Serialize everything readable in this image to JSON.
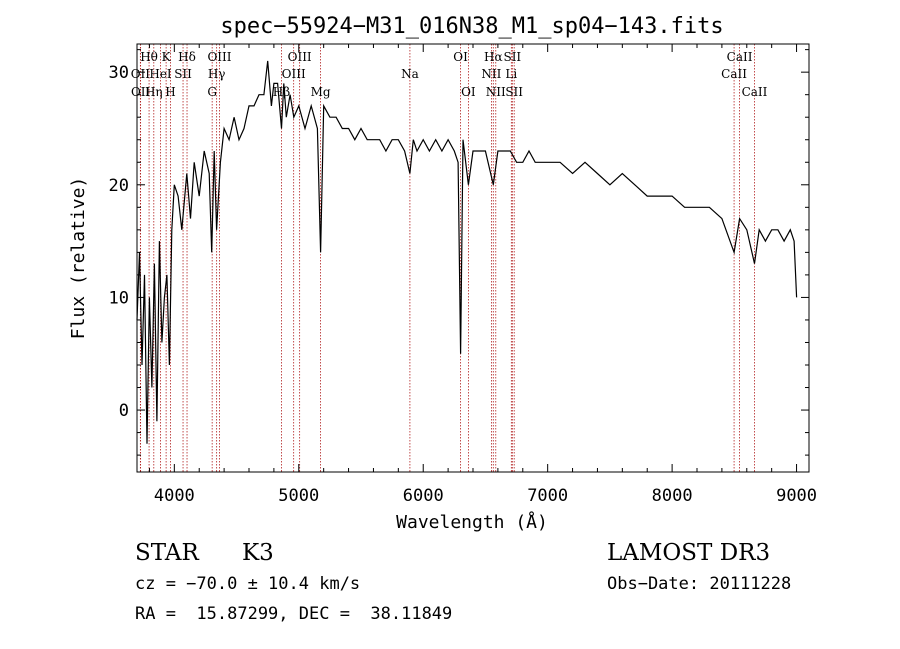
{
  "chart_data": {
    "type": "line",
    "title": "spec−55924−M31_016N38_M1_sp04−143.fits",
    "xlabel": "Wavelength (Å)",
    "ylabel": "Flux (relative)",
    "xlim": [
      3700,
      9100
    ],
    "ylim": [
      -5.5,
      32.5
    ],
    "xticks": [
      4000,
      5000,
      6000,
      7000,
      8000,
      9000
    ],
    "yticks": [
      0,
      10,
      20,
      30
    ],
    "grid": false,
    "series": [
      {
        "values_x": [
          3700,
          3720,
          3740,
          3760,
          3780,
          3800,
          3820,
          3840,
          3860,
          3880,
          3900,
          3920,
          3940,
          3960,
          3980,
          4000,
          4030,
          4060,
          4100,
          4130,
          4160,
          4200,
          4240,
          4280,
          4300,
          4320,
          4340,
          4370,
          4400,
          4440,
          4480,
          4520,
          4560,
          4600,
          4640,
          4680,
          4720,
          4750,
          4780,
          4800,
          4830,
          4861,
          4880,
          4900,
          4930,
          4960,
          5000,
          5050,
          5100,
          5150,
          5175,
          5200,
          5250,
          5300,
          5350,
          5400,
          5450,
          5500,
          5550,
          5600,
          5650,
          5700,
          5750,
          5800,
          5850,
          5893,
          5920,
          5950,
          6000,
          6050,
          6100,
          6150,
          6200,
          6250,
          6280,
          6300,
          6320,
          6363,
          6400,
          6450,
          6500,
          6563,
          6600,
          6650,
          6700,
          6750,
          6800,
          6850,
          6900,
          6950,
          7000,
          7100,
          7200,
          7300,
          7400,
          7500,
          7600,
          7700,
          7800,
          7900,
          8000,
          8100,
          8200,
          8300,
          8400,
          8498,
          8542,
          8600,
          8662,
          8700,
          8750,
          8800,
          8850,
          8900,
          8950,
          8980,
          9000
        ],
        "values_y": [
          8,
          14,
          4,
          12,
          -3,
          10,
          2,
          13,
          -1,
          15,
          6,
          10,
          12,
          4,
          16,
          20,
          19,
          16,
          21,
          17,
          22,
          19,
          23,
          21,
          14,
          23,
          16,
          22,
          25,
          24,
          26,
          24,
          25,
          27,
          27,
          28,
          28,
          31,
          27,
          29,
          29,
          25,
          29,
          26,
          28,
          26,
          27,
          25,
          27,
          25,
          14,
          27,
          26,
          26,
          25,
          25,
          24,
          25,
          24,
          24,
          24,
          23,
          24,
          24,
          23,
          21,
          24,
          23,
          24,
          23,
          24,
          23,
          24,
          23,
          22,
          5,
          24,
          20,
          23,
          23,
          23,
          20,
          23,
          23,
          23,
          22,
          22,
          23,
          22,
          22,
          22,
          22,
          21,
          22,
          21,
          20,
          21,
          20,
          19,
          19,
          19,
          18,
          18,
          18,
          17,
          14,
          17,
          16,
          13,
          16,
          15,
          16,
          16,
          15,
          16,
          15,
          10
        ],
        "values_label": ""
      }
    ],
    "line_labels": [
      {
        "name": "Hθ",
        "wave": 3797,
        "row": 0
      },
      {
        "name": "K",
        "wave": 3934,
        "row": 0
      },
      {
        "name": "Hδ",
        "wave": 4102,
        "row": 0
      },
      {
        "name": "OIII",
        "wave": 4363,
        "row": 0
      },
      {
        "name": "OIII",
        "wave": 5007,
        "row": 0
      },
      {
        "name": "OI",
        "wave": 6300,
        "row": 0
      },
      {
        "name": "Hα",
        "wave": 6563,
        "row": 0
      },
      {
        "name": "SII",
        "wave": 6716,
        "row": 0
      },
      {
        "name": "CaII",
        "wave": 8542,
        "row": 0
      },
      {
        "name": "OII",
        "wave": 3727,
        "row": 1
      },
      {
        "name": "HeI",
        "wave": 3889,
        "row": 1
      },
      {
        "name": "SII",
        "wave": 4070,
        "row": 1
      },
      {
        "name": "Hγ",
        "wave": 4340,
        "row": 1
      },
      {
        "name": "OIII",
        "wave": 4959,
        "row": 1
      },
      {
        "name": "Na",
        "wave": 5893,
        "row": 1
      },
      {
        "name": "NII",
        "wave": 6548,
        "row": 1
      },
      {
        "name": "Li",
        "wave": 6708,
        "row": 1
      },
      {
        "name": "CaII",
        "wave": 8498,
        "row": 1
      },
      {
        "name": "OII",
        "wave": 3729,
        "row": 2
      },
      {
        "name": "Hη",
        "wave": 3835,
        "row": 2
      },
      {
        "name": "H",
        "wave": 3969,
        "row": 2
      },
      {
        "name": "G",
        "wave": 4304,
        "row": 2
      },
      {
        "name": "Hβ",
        "wave": 4861,
        "row": 2
      },
      {
        "name": "Mg",
        "wave": 5175,
        "row": 2
      },
      {
        "name": "OI",
        "wave": 6363,
        "row": 2
      },
      {
        "name": "NII",
        "wave": 6583,
        "row": 2
      },
      {
        "name": "SII",
        "wave": 6731,
        "row": 2
      },
      {
        "name": "CaII",
        "wave": 8662,
        "row": 2
      }
    ],
    "marker_lines": [
      3727,
      3729,
      3797,
      3835,
      3889,
      3934,
      3969,
      4070,
      4102,
      4304,
      4340,
      4363,
      4861,
      4959,
      5007,
      5175,
      5893,
      6300,
      6363,
      6548,
      6563,
      6583,
      6708,
      6716,
      6731,
      8498,
      8542,
      8662
    ]
  },
  "info": {
    "class": "STAR",
    "subclass": "K3",
    "survey": "LAMOST DR3",
    "cz": "cz = −70.0 ± 10.4 km/s",
    "obs_date": "Obs−Date: 20111228",
    "coords": "RA =  15.87299, DEC =  38.11849"
  }
}
